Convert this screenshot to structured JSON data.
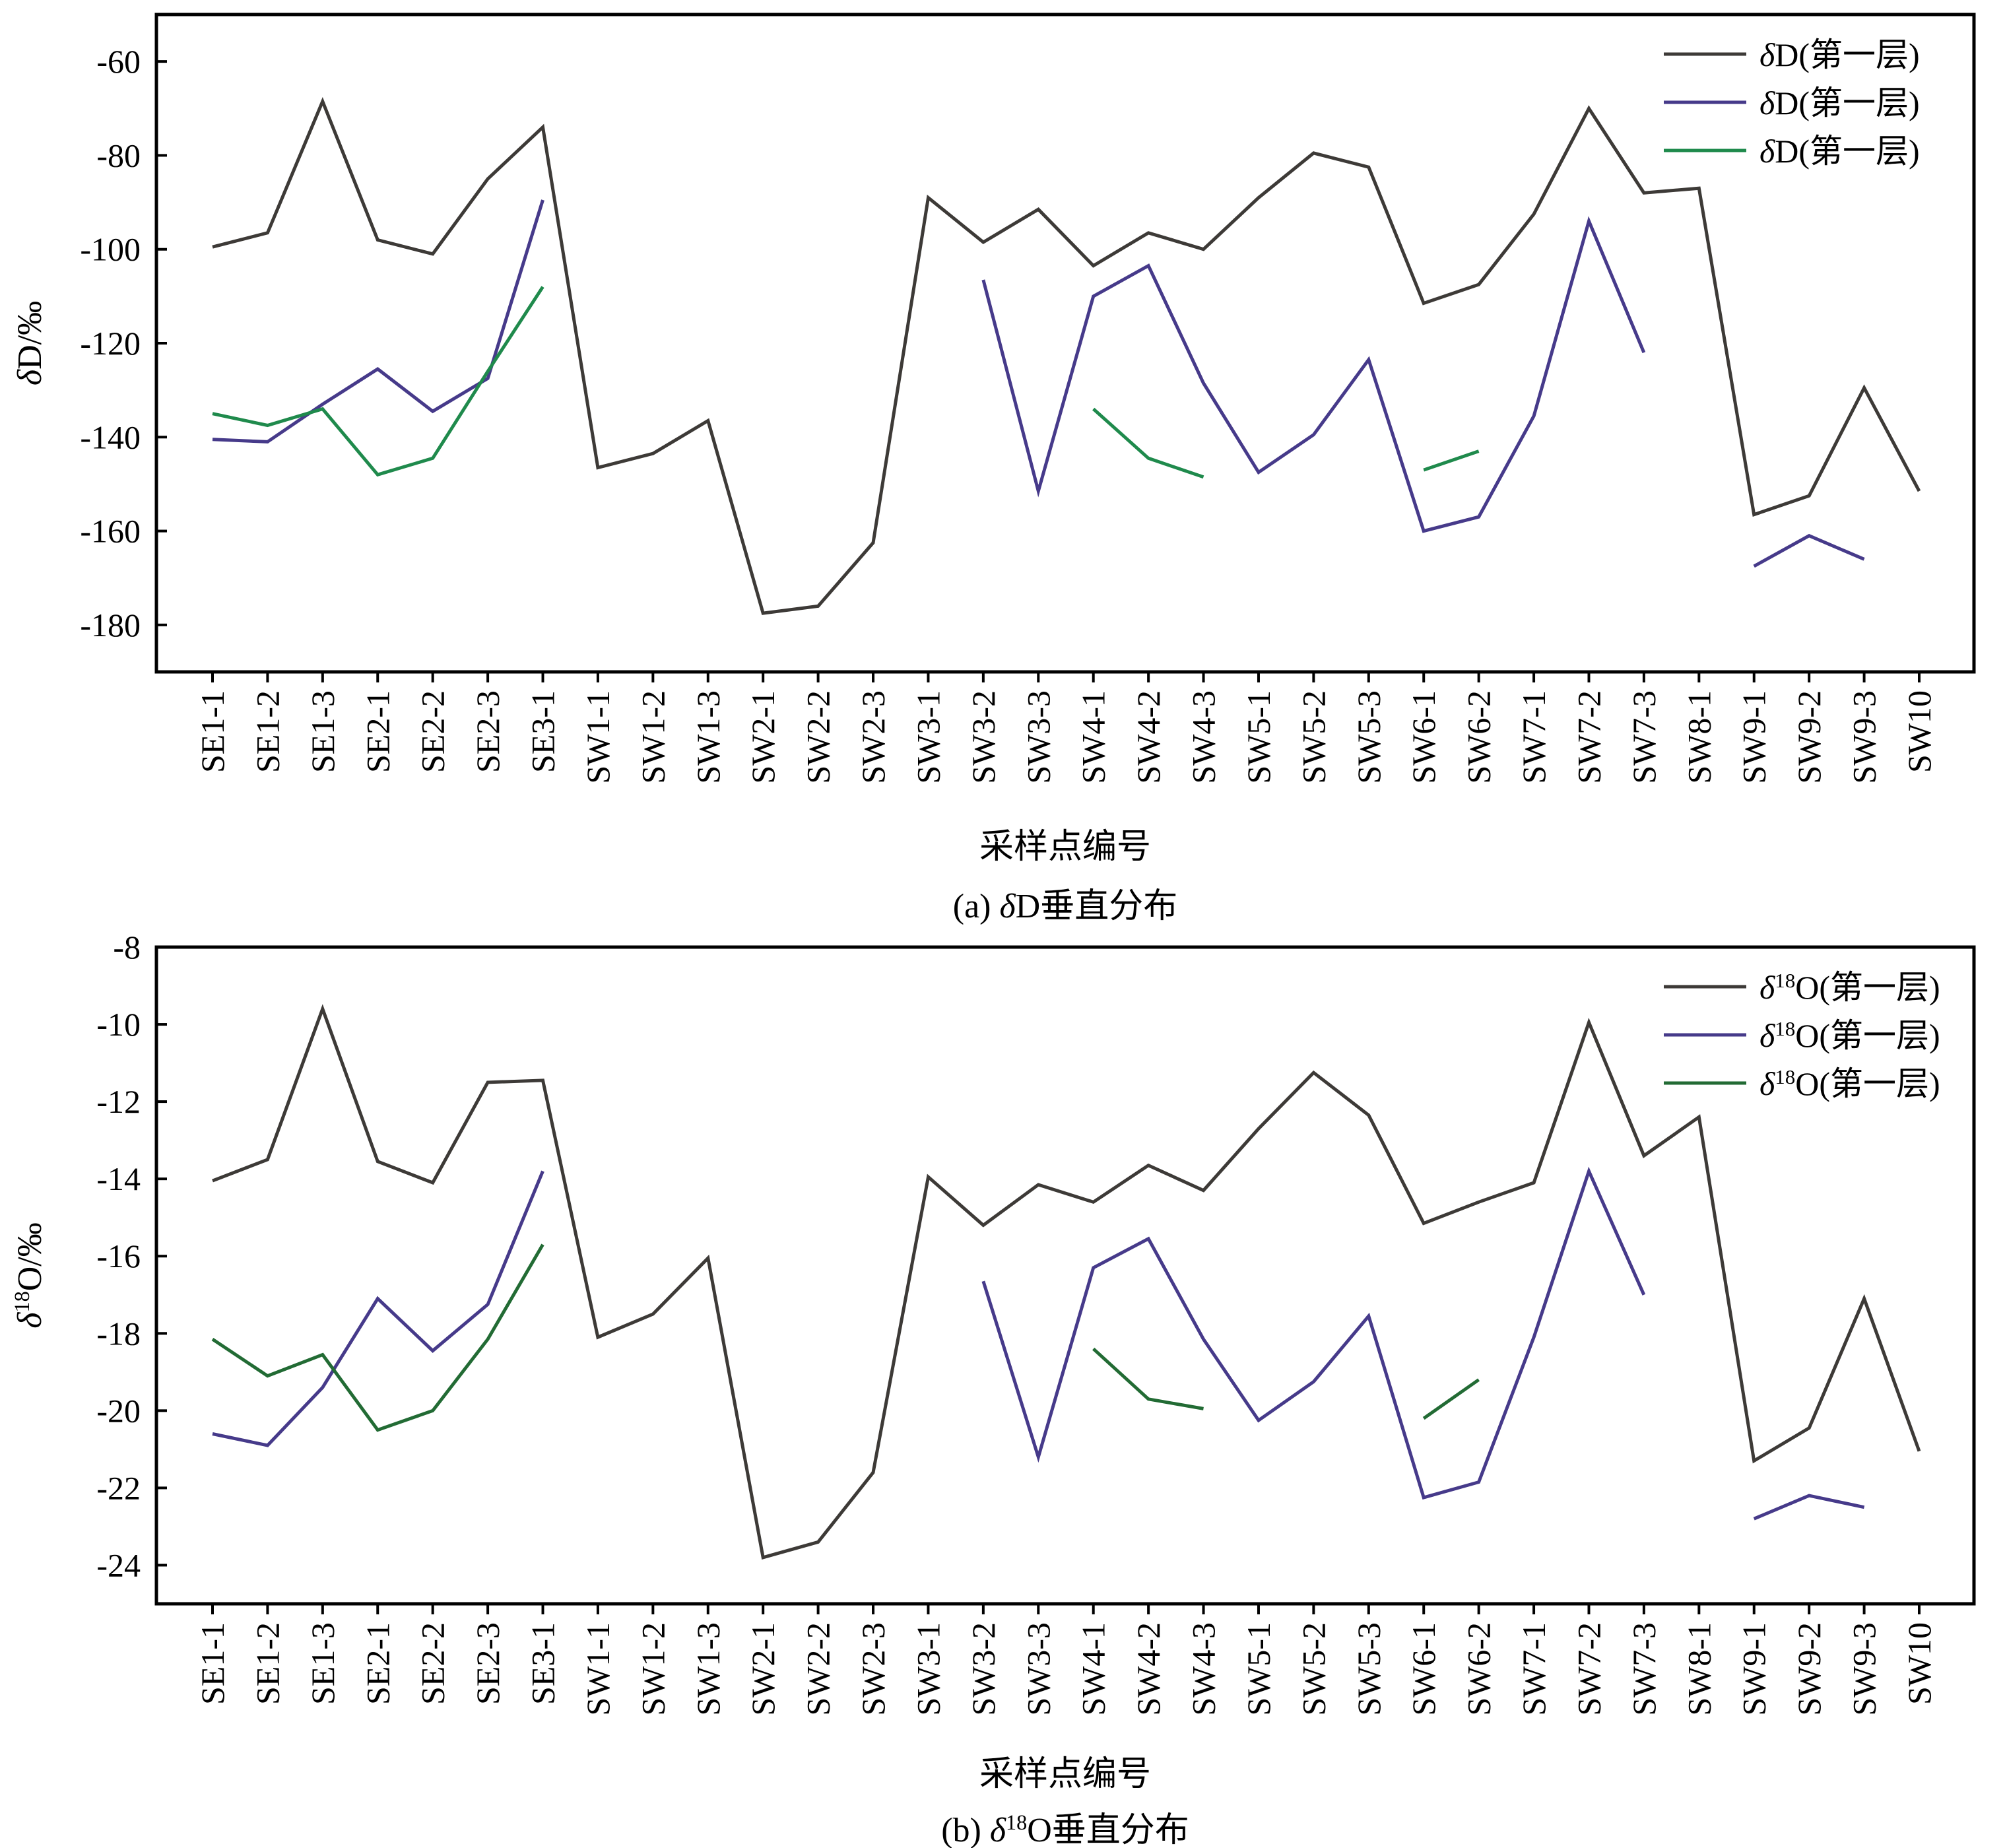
{
  "chart_data": [
    {
      "id": "a",
      "type": "line",
      "caption_prefix": "(a) ",
      "caption_symbol": "δ",
      "caption_sup": "",
      "caption_rest": "D垂直分布",
      "xlabel": "采样点编号",
      "ylabel_symbol": "δ",
      "ylabel_sup": "",
      "ylabel_rest": "D/‰",
      "ylim": [
        -190,
        -50
      ],
      "yticks": [
        -60,
        -80,
        -100,
        -120,
        -140,
        -160,
        -180
      ],
      "grid": false,
      "legend_position": "top-right",
      "categories": [
        "SE1-1",
        "SE1-2",
        "SE1-3",
        "SE2-1",
        "SE2-2",
        "SE2-3",
        "SE3-1",
        "SW1-1",
        "SW1-2",
        "SW1-3",
        "SW2-1",
        "SW2-2",
        "SW2-3",
        "SW3-1",
        "SW3-2",
        "SW3-3",
        "SW4-1",
        "SW4-2",
        "SW4-3",
        "SW5-1",
        "SW5-2",
        "SW5-3",
        "SW6-1",
        "SW6-2",
        "SW7-1",
        "SW7-2",
        "SW7-3",
        "SW8-1",
        "SW9-1",
        "SW9-2",
        "SW9-3",
        "SW10"
      ],
      "series": [
        {
          "legend_symbol": "δ",
          "legend_sup": "",
          "legend_rest": "D(第一层)",
          "color": "#3d3a37",
          "values": [
            -99.5,
            -96.5,
            -68.5,
            -98,
            -101,
            -85,
            -74,
            -146.5,
            -143.5,
            -136.5,
            -177.5,
            -176,
            -162.5,
            -89,
            -98.5,
            -91.5,
            -103.5,
            -96.5,
            -100,
            -89,
            -79.5,
            -82.5,
            -111.5,
            -107.5,
            -92.5,
            -70,
            -88,
            -87,
            -156.5,
            -152.5,
            -129.5,
            -151.5
          ]
        },
        {
          "legend_symbol": "δ",
          "legend_sup": "",
          "legend_rest": "D(第一层)",
          "color": "#463a8a",
          "values": [
            -140.5,
            -141,
            -133,
            -125.5,
            -134.5,
            -127.5,
            -89.5,
            null,
            null,
            null,
            null,
            null,
            null,
            null,
            -106.5,
            -151.5,
            -110,
            -103.5,
            -128.5,
            -147.5,
            -139.5,
            -123.5,
            -160,
            -157,
            -135.5,
            -94,
            -122,
            null,
            -167.5,
            -161,
            -166,
            null
          ]
        },
        {
          "legend_symbol": "δ",
          "legend_sup": "",
          "legend_rest": "D(第一层)",
          "color": "#1f8a4c",
          "values": [
            -135,
            -137.5,
            -134,
            -148,
            -144.5,
            -126,
            -108,
            null,
            null,
            null,
            null,
            null,
            null,
            null,
            null,
            null,
            -134,
            -144.5,
            -148.5,
            null,
            null,
            null,
            -147,
            -143,
            null,
            null,
            null,
            null,
            null,
            null,
            null,
            null
          ]
        }
      ]
    },
    {
      "id": "b",
      "type": "line",
      "caption_prefix": "(b) ",
      "caption_symbol": "δ",
      "caption_sup": "18",
      "caption_rest": "O垂直分布",
      "xlabel": "采样点编号",
      "ylabel_symbol": "δ",
      "ylabel_sup": "18",
      "ylabel_rest": "O/‰",
      "ylim": [
        -25,
        -8
      ],
      "yticks": [
        -8,
        -10,
        -12,
        -14,
        -16,
        -18,
        -20,
        -22,
        -24
      ],
      "grid": false,
      "legend_position": "top-right",
      "categories": [
        "SE1-1",
        "SE1-2",
        "SE1-3",
        "SE2-1",
        "SE2-2",
        "SE2-3",
        "SE3-1",
        "SW1-1",
        "SW1-2",
        "SW1-3",
        "SW2-1",
        "SW2-2",
        "SW2-3",
        "SW3-1",
        "SW3-2",
        "SW3-3",
        "SW4-1",
        "SW4-2",
        "SW4-3",
        "SW5-1",
        "SW5-2",
        "SW5-3",
        "SW6-1",
        "SW6-2",
        "SW7-1",
        "SW7-2",
        "SW7-3",
        "SW8-1",
        "SW9-1",
        "SW9-2",
        "SW9-3",
        "SW10"
      ],
      "series": [
        {
          "legend_symbol": "δ",
          "legend_sup": "18",
          "legend_rest": "O(第一层)",
          "color": "#3d3a37",
          "values": [
            -14.05,
            -13.5,
            -9.6,
            -13.55,
            -14.1,
            -11.5,
            -11.45,
            -18.1,
            -17.5,
            -16.05,
            -23.8,
            -23.4,
            -21.6,
            -13.95,
            -15.2,
            -14.15,
            -14.6,
            -13.65,
            -14.3,
            -12.7,
            -11.25,
            -12.35,
            -15.15,
            -14.6,
            -14.1,
            -9.95,
            -13.4,
            -12.4,
            -21.3,
            -20.45,
            -17.1,
            -21.05
          ]
        },
        {
          "legend_symbol": "δ",
          "legend_sup": "18",
          "legend_rest": "O(第一层)",
          "color": "#463a8a",
          "values": [
            -20.6,
            -20.9,
            -19.4,
            -17.1,
            -18.45,
            -17.25,
            -13.8,
            null,
            null,
            null,
            null,
            null,
            null,
            null,
            -16.65,
            -21.2,
            -16.3,
            -15.55,
            -18.15,
            -20.25,
            -19.25,
            -17.55,
            -22.25,
            -21.85,
            -18.1,
            -13.8,
            -17,
            null,
            -22.8,
            -22.2,
            -22.5,
            null
          ]
        },
        {
          "legend_symbol": "δ",
          "legend_sup": "18",
          "legend_rest": "O(第一层)",
          "color": "#226b34",
          "values": [
            -18.15,
            -19.1,
            -18.55,
            -20.5,
            -20,
            -18.15,
            -15.7,
            null,
            null,
            null,
            null,
            null,
            null,
            null,
            null,
            null,
            -18.4,
            -19.7,
            -19.95,
            null,
            null,
            null,
            -20.2,
            -19.2,
            null,
            null,
            null,
            null,
            null,
            null,
            null,
            null
          ]
        }
      ]
    }
  ]
}
